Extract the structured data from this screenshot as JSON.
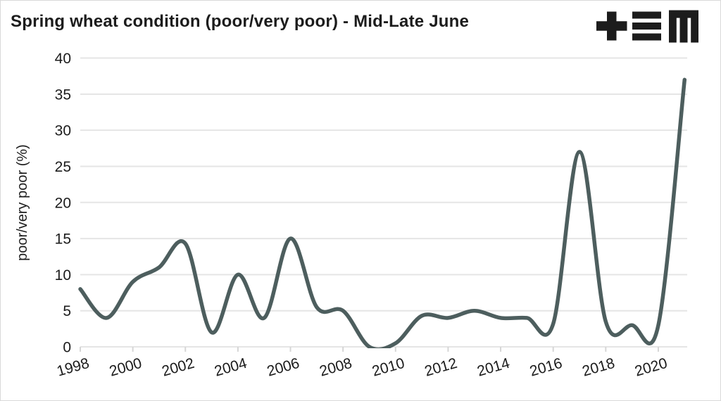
{
  "figure": {
    "logo_mark": "+≡M"
  },
  "chart_data": {
    "type": "line",
    "title": "Spring wheat condition (poor/very poor) - Mid-Late June",
    "xlabel": "",
    "ylabel": "poor/very poor (%)",
    "series": [
      {
        "name": "spring wheat poor/very poor percent",
        "x": [
          1998,
          1999,
          2000,
          2001,
          2002,
          2003,
          2004,
          2005,
          2006,
          2007,
          2008,
          2009,
          2010,
          2011,
          2012,
          2013,
          2014,
          2015,
          2016,
          2017,
          2018,
          2019,
          2020,
          2021
        ],
        "y": [
          8,
          4,
          9,
          11,
          14.3,
          2,
          10,
          4,
          15,
          5.5,
          5,
          0,
          0.5,
          4.3,
          4,
          5,
          4,
          4,
          3.2,
          27,
          3.5,
          3,
          3,
          37
        ]
      }
    ],
    "xticks": [
      1998,
      2000,
      2002,
      2004,
      2006,
      2008,
      2010,
      2012,
      2014,
      2016,
      2018,
      2020
    ],
    "yticks": [
      0,
      5,
      10,
      15,
      20,
      25,
      30,
      35,
      40
    ],
    "xlim": [
      1998,
      2021.1
    ],
    "ylim": [
      0,
      40
    ],
    "grid": "horizontal",
    "legend_position": "none",
    "smoothing": "cubic-spline",
    "clip_below_zero": true,
    "colors": {
      "line": "#4d5e5e",
      "grid": "#e5e5e5",
      "tick": "#d6d6d6",
      "text": "#1c1c1c",
      "background": "#ffffff"
    }
  }
}
